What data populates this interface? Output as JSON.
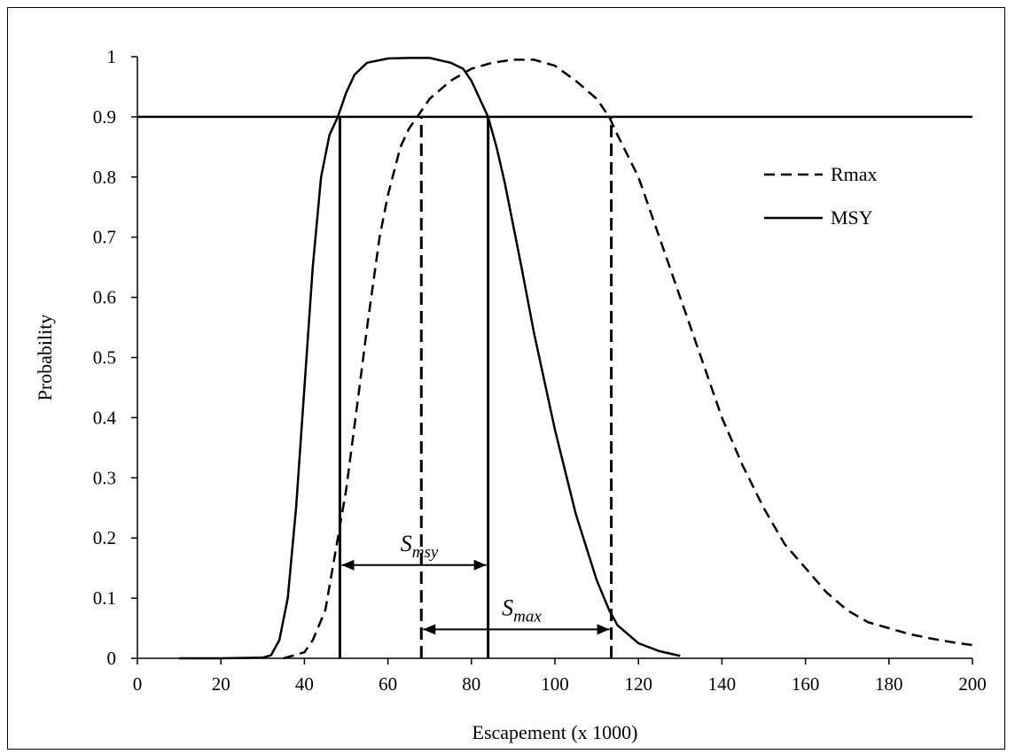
{
  "chart_data": {
    "type": "line",
    "title": "",
    "xlabel": "Escapement (x 1000)",
    "ylabel": "Probability",
    "xlim": [
      0,
      200
    ],
    "ylim": [
      0,
      1
    ],
    "x_ticks": [
      "0",
      "20",
      "40",
      "60",
      "80",
      "100",
      "120",
      "140",
      "160",
      "180",
      "200"
    ],
    "y_ticks": [
      "0",
      "0.1",
      "0.2",
      "0.3",
      "0.4",
      "0.5",
      "0.6",
      "0.7",
      "0.8",
      "0.9",
      "1"
    ],
    "grid": false,
    "legend_position": "right",
    "series": [
      {
        "name": "Rmax",
        "style": "dashed",
        "x": [
          35,
          40,
          42,
          45,
          47,
          50,
          53,
          55,
          58,
          60,
          63,
          65,
          68,
          70,
          75,
          80,
          85,
          90,
          95,
          100,
          105,
          110,
          113,
          115,
          120,
          125,
          130,
          135,
          140,
          145,
          150,
          155,
          160,
          165,
          170,
          175,
          180,
          185,
          190,
          195,
          200
        ],
        "y": [
          0.0,
          0.01,
          0.03,
          0.08,
          0.16,
          0.28,
          0.44,
          0.55,
          0.7,
          0.77,
          0.85,
          0.88,
          0.91,
          0.93,
          0.96,
          0.98,
          0.99,
          0.995,
          0.995,
          0.985,
          0.96,
          0.93,
          0.9,
          0.87,
          0.8,
          0.7,
          0.6,
          0.5,
          0.4,
          0.32,
          0.25,
          0.19,
          0.15,
          0.11,
          0.08,
          0.06,
          0.05,
          0.04,
          0.033,
          0.027,
          0.022
        ]
      },
      {
        "name": "MSY",
        "style": "solid",
        "x": [
          10,
          20,
          30,
          32,
          34,
          36,
          38,
          40,
          42,
          44,
          46,
          48,
          50,
          52,
          55,
          60,
          65,
          70,
          75,
          78,
          80,
          82,
          84,
          86,
          88,
          90,
          92,
          95,
          100,
          105,
          110,
          113,
          115,
          120,
          125,
          130
        ],
        "y": [
          0.0,
          0.0,
          0.001,
          0.005,
          0.03,
          0.1,
          0.25,
          0.45,
          0.65,
          0.8,
          0.87,
          0.9,
          0.94,
          0.97,
          0.99,
          0.997,
          0.998,
          0.998,
          0.99,
          0.98,
          0.96,
          0.93,
          0.9,
          0.85,
          0.79,
          0.72,
          0.65,
          0.54,
          0.38,
          0.24,
          0.13,
          0.08,
          0.055,
          0.025,
          0.012,
          0.004
        ]
      }
    ],
    "reference_line": {
      "y": 0.9,
      "style": "solid"
    },
    "vertical_markers": [
      {
        "x": 48.5,
        "style": "solid"
      },
      {
        "x": 84,
        "style": "solid"
      },
      {
        "x": 68,
        "style": "dashed"
      },
      {
        "x": 113.5,
        "style": "dashed"
      }
    ],
    "annotations": [
      {
        "main": "S",
        "sub": "msy",
        "x_from": 48.5,
        "x_to": 84,
        "y": 0.155
      },
      {
        "main": "S",
        "sub": "max",
        "x_from": 68,
        "x_to": 113.5,
        "y": 0.048
      }
    ]
  }
}
